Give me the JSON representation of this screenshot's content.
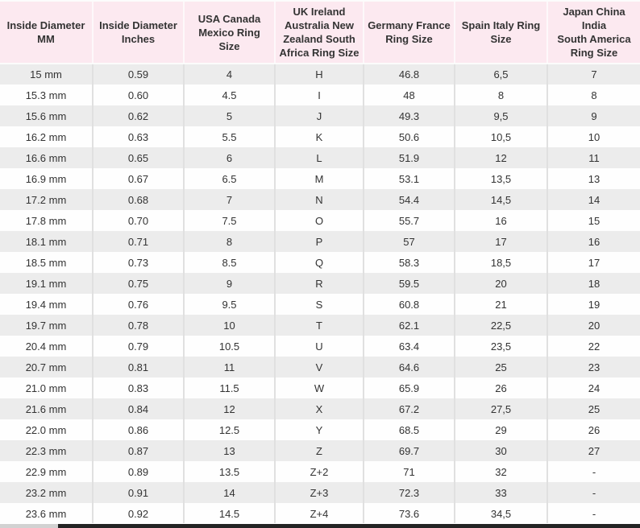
{
  "chart_data": {
    "type": "table",
    "columns": [
      "Inside Diameter\nMM",
      "Inside Diameter\nInches",
      "USA Canada\nMexico Ring Size",
      "UK Ireland\nAustralia New\nZealand South\nAfrica Ring Size",
      "Germany France\nRing Size",
      "Spain Italy Ring\nSize",
      "Japan China India\nSouth America\nRing Size"
    ],
    "rows": [
      [
        "15 mm",
        "0.59",
        "4",
        "H",
        "46.8",
        "6,5",
        "7"
      ],
      [
        "15.3 mm",
        "0.60",
        "4.5",
        "I",
        "48",
        "8",
        "8"
      ],
      [
        "15.6 mm",
        "0.62",
        "5",
        "J",
        "49.3",
        "9,5",
        "9"
      ],
      [
        "16.2 mm",
        "0.63",
        "5.5",
        "K",
        "50.6",
        "10,5",
        "10"
      ],
      [
        "16.6 mm",
        "0.65",
        "6",
        "L",
        "51.9",
        "12",
        "11"
      ],
      [
        "16.9 mm",
        "0.67",
        "6.5",
        "M",
        "53.1",
        "13,5",
        "13"
      ],
      [
        "17.2 mm",
        "0.68",
        "7",
        "N",
        "54.4",
        "14,5",
        "14"
      ],
      [
        "17.8 mm",
        "0.70",
        "7.5",
        "O",
        "55.7",
        "16",
        "15"
      ],
      [
        "18.1 mm",
        "0.71",
        "8",
        "P",
        "57",
        "17",
        "16"
      ],
      [
        "18.5 mm",
        "0.73",
        "8.5",
        "Q",
        "58.3",
        "18,5",
        "17"
      ],
      [
        "19.1 mm",
        "0.75",
        "9",
        "R",
        "59.5",
        "20",
        "18"
      ],
      [
        "19.4 mm",
        "0.76",
        "9.5",
        "S",
        "60.8",
        "21",
        "19"
      ],
      [
        "19.7 mm",
        "0.78",
        "10",
        "T",
        "62.1",
        "22,5",
        "20"
      ],
      [
        "20.4 mm",
        "0.79",
        "10.5",
        "U",
        "63.4",
        "23,5",
        "22"
      ],
      [
        "20.7 mm",
        "0.81",
        "11",
        "V",
        "64.6",
        "25",
        "23"
      ],
      [
        "21.0 mm",
        "0.83",
        "11.5",
        "W",
        "65.9",
        "26",
        "24"
      ],
      [
        "21.6 mm",
        "0.84",
        "12",
        "X",
        "67.2",
        "27,5",
        "25"
      ],
      [
        "22.0 mm",
        "0.86",
        "12.5",
        "Y",
        "68.5",
        "29",
        "26"
      ],
      [
        "22.3 mm",
        "0.87",
        "13",
        "Z",
        "69.7",
        "30",
        "27"
      ],
      [
        "22.9 mm",
        "0.89",
        "13.5",
        "Z+2",
        "71",
        "32",
        "-"
      ],
      [
        "23.2 mm",
        "0.91",
        "14",
        "Z+3",
        "72.3",
        "33",
        "-"
      ],
      [
        "23.6 mm",
        "0.92",
        "14.5",
        "Z+4",
        "73.6",
        "34,5",
        "-"
      ]
    ],
    "layout": {
      "grid": "striped-rows",
      "legend_position": "none"
    }
  },
  "colors": {
    "header_bg": "#fce9f0",
    "row_odd_bg": "#ececec",
    "row_even_bg": "#fefefe",
    "cell_border": "#e0e0e0",
    "text": "#333333",
    "bottom_bar_dark": "#232323",
    "bottom_bar_light": "#d2d2d2"
  }
}
